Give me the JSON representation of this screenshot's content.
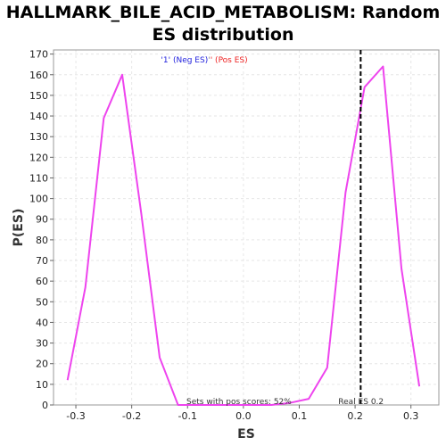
{
  "chart_data": {
    "type": "line",
    "title_lines": [
      "HALLMARK_BILE_ACID_METABOLISM: Random",
      "ES distribution"
    ],
    "xlabel": "ES",
    "ylabel": "P(ES)",
    "xlim": [
      -0.34,
      0.35
    ],
    "ylim": [
      0,
      172
    ],
    "xticks": [
      -0.3,
      -0.2,
      -0.1,
      0.0,
      0.1,
      0.2,
      0.3
    ],
    "xtick_labels": [
      "-0.3",
      "-0.2",
      "-0.1",
      "0.0",
      "0.1",
      "0.2",
      "0.3"
    ],
    "yticks": [
      0,
      10,
      20,
      30,
      40,
      50,
      60,
      70,
      80,
      90,
      100,
      110,
      120,
      130,
      140,
      150,
      160,
      170
    ],
    "ytick_labels": [
      "0",
      "10",
      "20",
      "30",
      "40",
      "50",
      "60",
      "70",
      "80",
      "90",
      "100",
      "110",
      "120",
      "130",
      "140",
      "150",
      "160",
      "170"
    ],
    "grid": true,
    "series": [
      {
        "color": "#ee44ee",
        "x": [
          -0.315,
          -0.283,
          -0.25,
          -0.217,
          -0.183,
          -0.15,
          -0.117,
          -0.083,
          -0.05,
          -0.017,
          0.017,
          0.05,
          0.083,
          0.117,
          0.15,
          0.183,
          0.217,
          0.25,
          0.283,
          0.315
        ],
        "y": [
          12,
          57,
          139,
          160,
          93,
          23,
          0,
          0,
          0,
          0,
          0,
          0,
          1,
          3,
          18,
          103,
          154,
          164,
          66,
          9
        ]
      }
    ],
    "real_es": 0.21,
    "legend": {
      "neg_text": "'1' (Neg ES)",
      "sep_text": "'",
      "pos_text": "' (Pos ES)",
      "neg_color": "#2222dd",
      "pos_color": "#ee2222"
    },
    "annotations": {
      "pos_scores": "Sets with pos scores: 52%",
      "real_es": "Real ES 0.2"
    }
  }
}
